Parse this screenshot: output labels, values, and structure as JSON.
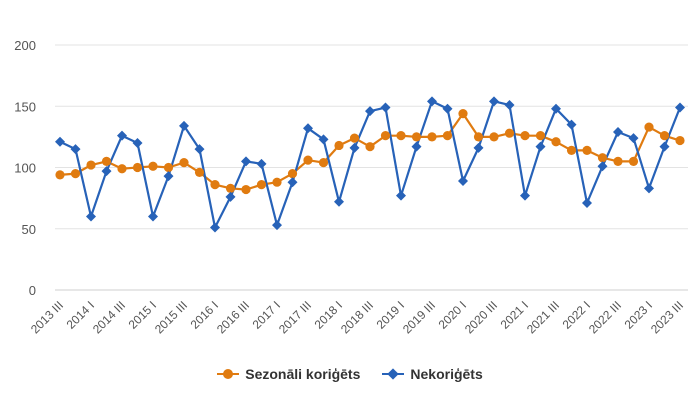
{
  "chart_data": {
    "type": "line",
    "categories": [
      "2013 III",
      "2013 IV",
      "2014 I",
      "2014 II",
      "2014 III",
      "2014 IV",
      "2015 I",
      "2015 II",
      "2015 III",
      "2015 IV",
      "2016 I",
      "2016 II",
      "2016 III",
      "2016 IV",
      "2017 I",
      "2017 II",
      "2017 III",
      "2017 IV",
      "2018 I",
      "2018 II",
      "2018 III",
      "2018 IV",
      "2019 I",
      "2019 II",
      "2019 III",
      "2019 IV",
      "2020 I",
      "2020 II",
      "2020 III",
      "2020 IV",
      "2021 I",
      "2021 II",
      "2021 III",
      "2021 IV",
      "2022 I",
      "2022 II",
      "2022 III",
      "2022 IV",
      "2023 I",
      "2023 II",
      "2023 III"
    ],
    "tick_labels": [
      "2013 III",
      "2014 I",
      "2014 III",
      "2015 I",
      "2015 III",
      "2016 I",
      "2016 III",
      "2017 I",
      "2017 III",
      "2018 I",
      "2018 III",
      "2019 I",
      "2019 III",
      "2020 I",
      "2020 III",
      "2021 I",
      "2021 III",
      "2022 I",
      "2022 III",
      "2023 I",
      "2023 III"
    ],
    "yticks": [
      0,
      50,
      100,
      150,
      200
    ],
    "ylim": [
      0,
      200
    ],
    "grid": true,
    "legend_position": "bottom-center",
    "series": [
      {
        "name": "Sezonāli koriģēts",
        "color": "#E07B10",
        "marker": "circle",
        "values": [
          94,
          95,
          102,
          105,
          99,
          100,
          101,
          100,
          104,
          96,
          86,
          83,
          82,
          86,
          88,
          95,
          106,
          104,
          118,
          124,
          117,
          126,
          126,
          125,
          125,
          126,
          144,
          125,
          125,
          128,
          126,
          126,
          121,
          114,
          114,
          108,
          105,
          105,
          133,
          126,
          122
        ]
      },
      {
        "name": "Nekoriģēts",
        "color": "#2762B8",
        "marker": "diamond",
        "values": [
          121,
          115,
          60,
          97,
          126,
          120,
          60,
          93,
          134,
          115,
          51,
          76,
          105,
          103,
          53,
          88,
          132,
          123,
          72,
          116,
          146,
          149,
          77,
          117,
          154,
          148,
          89,
          116,
          154,
          151,
          77,
          117,
          148,
          135,
          71,
          101,
          129,
          124,
          83,
          117,
          149
        ]
      }
    ]
  }
}
